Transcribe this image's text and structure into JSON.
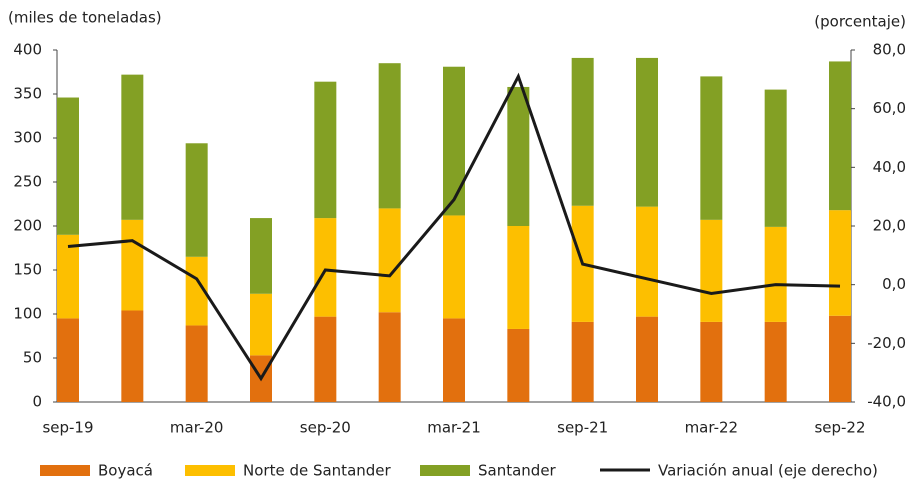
{
  "chart_data": {
    "type": "bar",
    "stacked": true,
    "y_label": "(miles de toneladas)",
    "y2_label": "(porcentaje)",
    "categories": [
      "sep-19",
      null,
      "mar-20",
      null,
      "sep-20",
      null,
      "mar-21",
      null,
      "sep-21",
      null,
      "mar-22",
      null,
      "sep-22"
    ],
    "series": [
      {
        "name": "Boyacá",
        "color": "#e2700e",
        "values": [
          95,
          104,
          87,
          53,
          97,
          102,
          95,
          83,
          91,
          97,
          91,
          91,
          98
        ]
      },
      {
        "name": "Norte de Santander",
        "color": "#fdbf00",
        "values": [
          95,
          103,
          78,
          70,
          112,
          118,
          117,
          117,
          132,
          125,
          116,
          108,
          120
        ]
      },
      {
        "name": "Santander",
        "color": "#83a024",
        "values": [
          156,
          165,
          129,
          86,
          155,
          165,
          169,
          158,
          168,
          169,
          163,
          156,
          169
        ]
      },
      {
        "name": "Variación anual (eje derecho)",
        "color": "#1a1a1a",
        "type": "line",
        "axis": "y2",
        "values": [
          13,
          15,
          2,
          -32,
          5,
          3,
          29,
          71,
          7,
          2,
          -3,
          0,
          -0.5
        ]
      }
    ],
    "ylim": [
      0,
      400
    ],
    "yticks": [
      0,
      50,
      100,
      150,
      200,
      250,
      300,
      350,
      400
    ],
    "y2lim": [
      -40,
      80
    ],
    "y2ticks": [
      {
        "value": -40,
        "label": "-40,0"
      },
      {
        "value": -20,
        "label": "-20,0"
      },
      {
        "value": 0,
        "label": "0,0"
      },
      {
        "value": 20,
        "label": "20,0"
      },
      {
        "value": 40,
        "label": "40,0"
      },
      {
        "value": 60,
        "label": "60,0"
      },
      {
        "value": 80,
        "label": "80,0"
      }
    ],
    "legend": "bottom"
  }
}
